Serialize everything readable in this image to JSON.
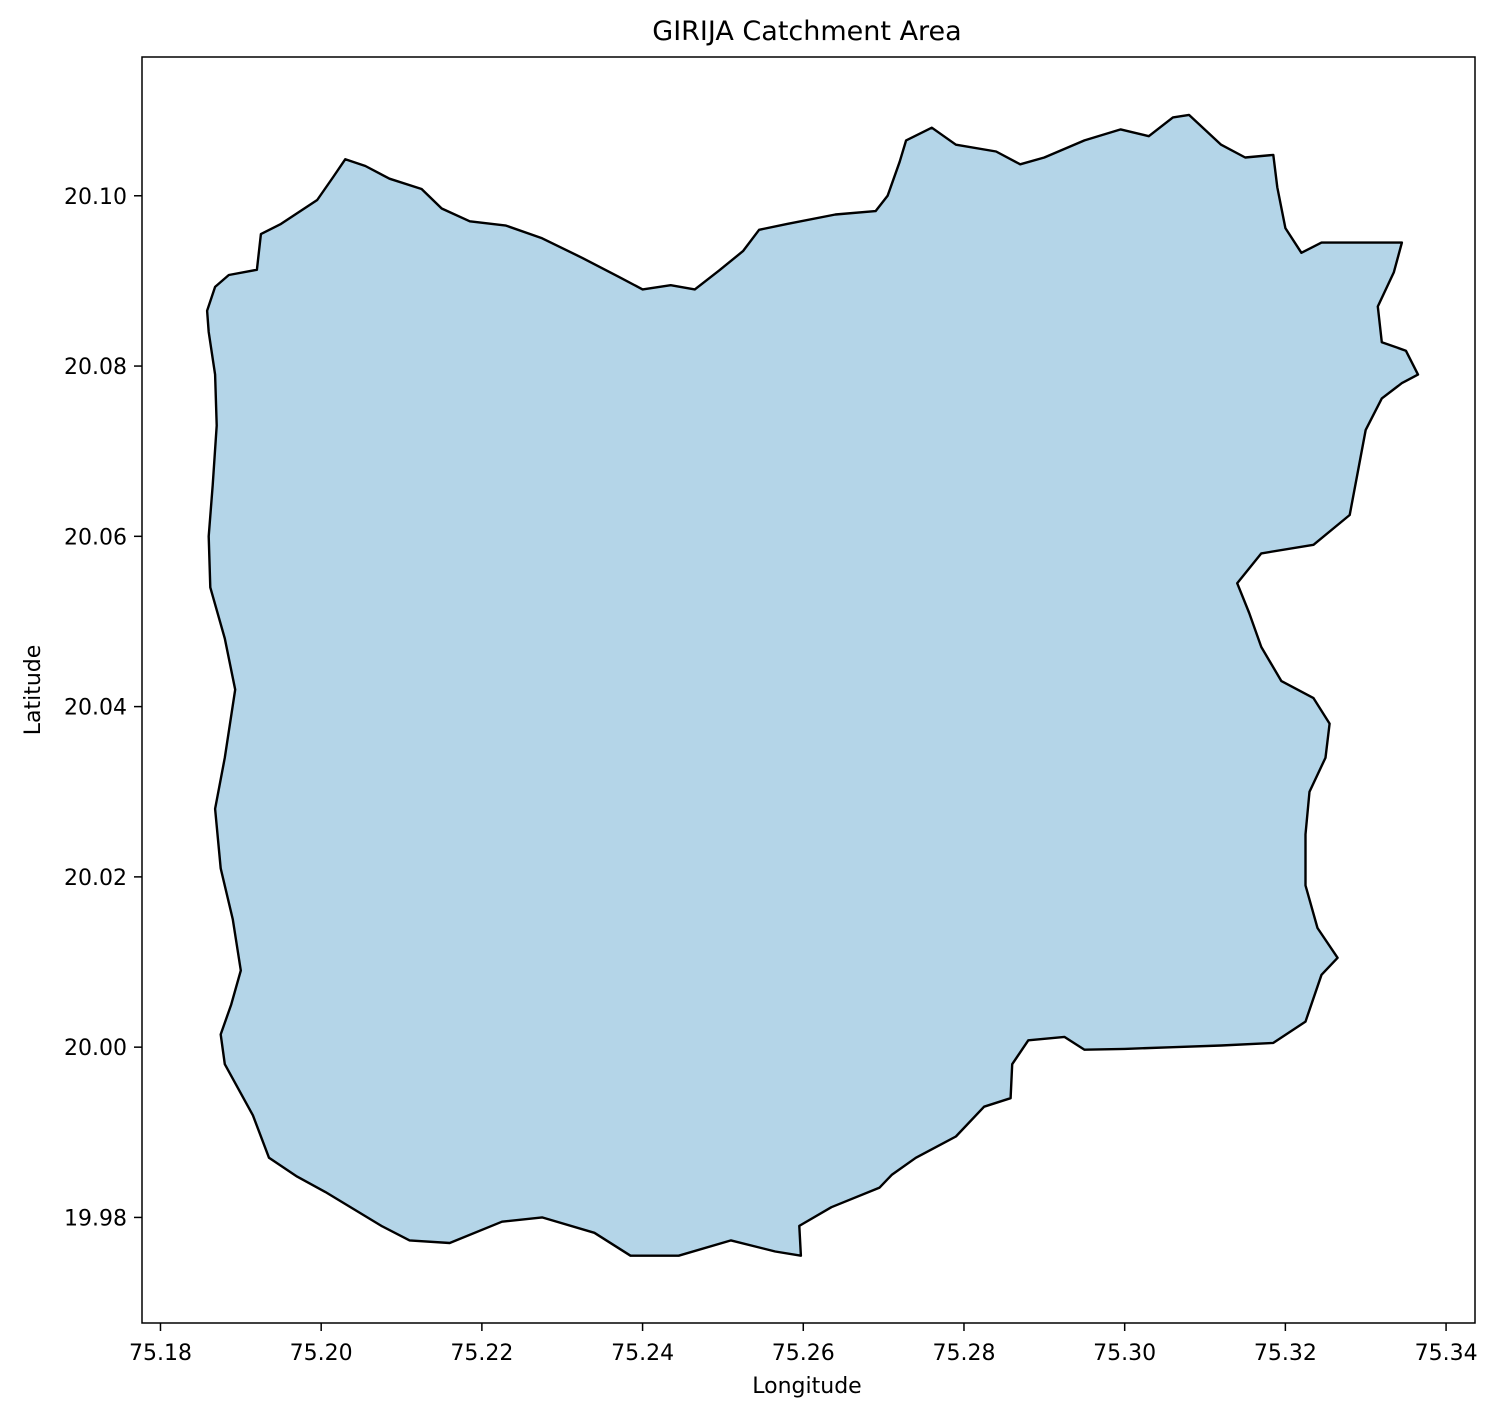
{
  "chart_data": {
    "type": "map",
    "title": "GIRIJA Catchment Area",
    "xlabel": "Longitude",
    "ylabel": "Latitude",
    "xlim": [
      75.1777,
      75.3436
    ],
    "ylim": [
      19.9676,
      20.1163
    ],
    "x_ticks": [
      "75.18",
      "75.20",
      "75.22",
      "75.24",
      "75.26",
      "75.28",
      "75.30",
      "75.32",
      "75.34"
    ],
    "y_ticks": [
      "19.98",
      "20.00",
      "20.02",
      "20.04",
      "20.06",
      "20.08",
      "20.10"
    ],
    "grid": false,
    "fill_color": "#b4d5e8",
    "edge_color": "#000000",
    "boundary": [
      [
        75.1858,
        20.0865
      ],
      [
        75.1868,
        20.0893
      ],
      [
        75.1885,
        20.0907
      ],
      [
        75.192,
        20.0913
      ],
      [
        75.1925,
        20.0955
      ],
      [
        75.195,
        20.0967
      ],
      [
        75.1995,
        20.0995
      ],
      [
        75.2015,
        20.1022
      ],
      [
        75.203,
        20.1043
      ],
      [
        75.2055,
        20.1035
      ],
      [
        75.2085,
        20.102
      ],
      [
        75.2125,
        20.1008
      ],
      [
        75.215,
        20.0985
      ],
      [
        75.2185,
        20.097
      ],
      [
        75.223,
        20.0965
      ],
      [
        75.2275,
        20.095
      ],
      [
        75.2325,
        20.0927
      ],
      [
        75.237,
        20.0905
      ],
      [
        75.24,
        20.089
      ],
      [
        75.2435,
        20.0895
      ],
      [
        75.2465,
        20.089
      ],
      [
        75.2495,
        20.0912
      ],
      [
        75.2525,
        20.0935
      ],
      [
        75.2545,
        20.096
      ],
      [
        75.258,
        20.0967
      ],
      [
        75.264,
        20.0978
      ],
      [
        75.269,
        20.0982
      ],
      [
        75.2705,
        20.1
      ],
      [
        75.272,
        20.104
      ],
      [
        75.2728,
        20.1065
      ],
      [
        75.276,
        20.108
      ],
      [
        75.279,
        20.106
      ],
      [
        75.284,
        20.1052
      ],
      [
        75.287,
        20.1037
      ],
      [
        75.29,
        20.1045
      ],
      [
        75.295,
        20.1065
      ],
      [
        75.2995,
        20.1078
      ],
      [
        75.303,
        20.107
      ],
      [
        75.306,
        20.1092
      ],
      [
        75.308,
        20.1095
      ],
      [
        75.312,
        20.106
      ],
      [
        75.315,
        20.1045
      ],
      [
        75.3185,
        20.1048
      ],
      [
        75.319,
        20.101
      ],
      [
        75.32,
        20.0962
      ],
      [
        75.322,
        20.0933
      ],
      [
        75.3245,
        20.0945
      ],
      [
        75.328,
        20.0945
      ],
      [
        75.3345,
        20.0945
      ],
      [
        75.3335,
        20.091
      ],
      [
        75.3315,
        20.087
      ],
      [
        75.332,
        20.0828
      ],
      [
        75.335,
        20.0818
      ],
      [
        75.3365,
        20.079
      ],
      [
        75.3345,
        20.078
      ],
      [
        75.332,
        20.0762
      ],
      [
        75.33,
        20.0725
      ],
      [
        75.329,
        20.0675
      ],
      [
        75.328,
        20.0625
      ],
      [
        75.3235,
        20.059
      ],
      [
        75.317,
        20.058
      ],
      [
        75.314,
        20.0545
      ],
      [
        75.3155,
        20.051
      ],
      [
        75.317,
        20.047
      ],
      [
        75.3195,
        20.043
      ],
      [
        75.3235,
        20.041
      ],
      [
        75.3255,
        20.038
      ],
      [
        75.325,
        20.034
      ],
      [
        75.323,
        20.03
      ],
      [
        75.3225,
        20.025
      ],
      [
        75.3225,
        20.019
      ],
      [
        75.324,
        20.014
      ],
      [
        75.3265,
        20.0105
      ],
      [
        75.3245,
        20.0085
      ],
      [
        75.3225,
        20.003
      ],
      [
        75.3185,
        20.0005
      ],
      [
        75.312,
        20.0002
      ],
      [
        75.306,
        20.0
      ],
      [
        75.3,
        19.9998
      ],
      [
        75.295,
        19.9997
      ],
      [
        75.2925,
        20.0012
      ],
      [
        75.288,
        20.0008
      ],
      [
        75.286,
        19.998
      ],
      [
        75.2858,
        19.994
      ],
      [
        75.2825,
        19.993
      ],
      [
        75.279,
        19.9895
      ],
      [
        75.274,
        19.987
      ],
      [
        75.271,
        19.985
      ],
      [
        75.2695,
        19.9835
      ],
      [
        75.2635,
        19.9812
      ],
      [
        75.2595,
        19.979
      ],
      [
        75.2597,
        19.9755
      ],
      [
        75.2565,
        19.976
      ],
      [
        75.251,
        19.9773
      ],
      [
        75.2445,
        19.9755
      ],
      [
        75.2385,
        19.9755
      ],
      [
        75.234,
        19.9782
      ],
      [
        75.2275,
        19.98
      ],
      [
        75.2225,
        19.9795
      ],
      [
        75.216,
        19.977
      ],
      [
        75.211,
        19.9773
      ],
      [
        75.2075,
        19.979
      ],
      [
        75.204,
        19.981
      ],
      [
        75.2005,
        19.983
      ],
      [
        75.197,
        19.9848
      ],
      [
        75.1935,
        19.987
      ],
      [
        75.1915,
        19.992
      ],
      [
        75.188,
        19.998
      ],
      [
        75.1875,
        20.0015
      ],
      [
        75.1888,
        20.005
      ],
      [
        75.19,
        20.009
      ],
      [
        75.189,
        20.015
      ],
      [
        75.1875,
        20.021
      ],
      [
        75.1868,
        20.028
      ],
      [
        75.188,
        20.034
      ],
      [
        75.1893,
        20.042
      ],
      [
        75.188,
        20.048
      ],
      [
        75.1862,
        20.054
      ],
      [
        75.186,
        20.06
      ],
      [
        75.1865,
        20.066
      ],
      [
        75.187,
        20.073
      ],
      [
        75.1868,
        20.079
      ],
      [
        75.186,
        20.084
      ]
    ]
  }
}
